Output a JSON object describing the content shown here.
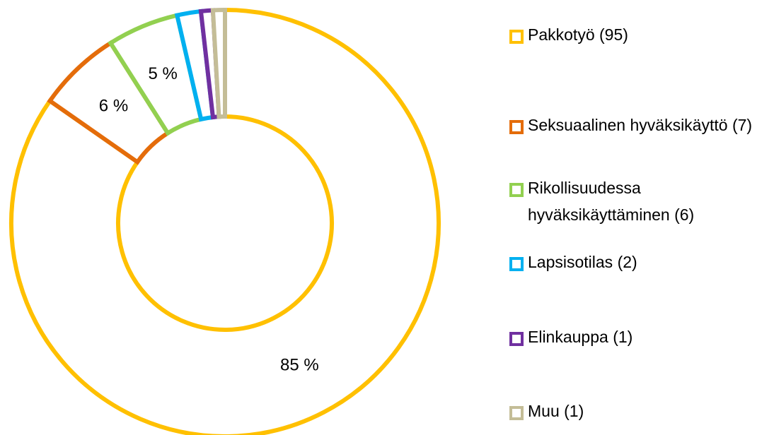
{
  "chart_data": {
    "type": "donut",
    "categories": [
      "Pakkotyö (95)",
      "Seksuaalinen hyväksikäyttö (7)",
      "Rikollisuudessa hyväksikäyttäminen (6)",
      "Lapsisotilas (2)",
      "Elinkauppa (1)",
      "Muu (1)"
    ],
    "values": [
      84.8,
      6.3,
      5.4,
      1.8,
      0.9,
      0.9
    ],
    "value_labels": [
      "85 %",
      "6 %",
      "5 %",
      null,
      null,
      null
    ],
    "colors": [
      "#ffc000",
      "#e46c0a",
      "#92d050",
      "#00b0f0",
      "#7030a0",
      "#c4bd97"
    ],
    "legend": "right"
  }
}
